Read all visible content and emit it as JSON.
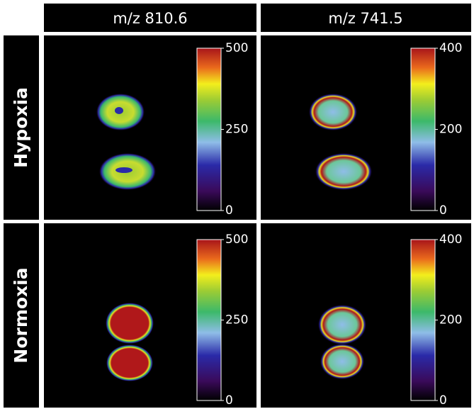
{
  "columns": [
    {
      "label": "m/z 810.6",
      "colorbar": {
        "ylim": [
          0,
          500
        ],
        "yticks": [
          0,
          250,
          500
        ]
      }
    },
    {
      "label": "m/z 741.5",
      "colorbar": {
        "ylim": [
          0,
          400
        ],
        "yticks": [
          0,
          200,
          400
        ]
      }
    }
  ],
  "rows": [
    "Hypoxia",
    "Normoxia"
  ]
}
